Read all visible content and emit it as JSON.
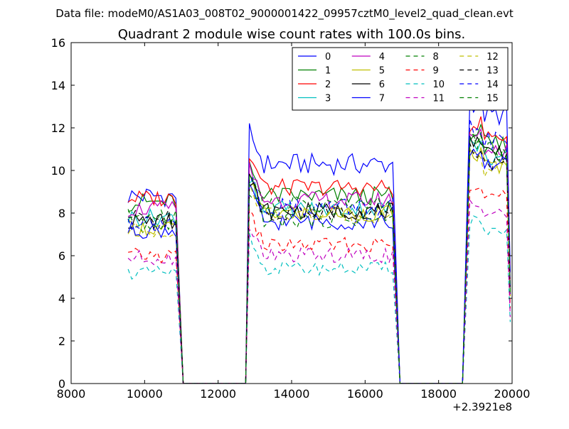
{
  "header": {
    "suptitle": "Data file: modeM0/AS1A03_008T02_9000001422_09957cztM0_level2_quad_clean.evt"
  },
  "chart_data": {
    "type": "line",
    "title": "Quadrant 2 module wise count rates with 100.0s bins.",
    "xlabel": "",
    "ylabel": "",
    "x_offset_label": "+2.3921e8",
    "xlim": [
      8000,
      20000
    ],
    "ylim": [
      0,
      16
    ],
    "xticks": [
      8000,
      10000,
      12000,
      14000,
      16000,
      18000,
      20000
    ],
    "yticks": [
      0,
      2,
      4,
      6,
      8,
      10,
      12,
      14,
      16
    ],
    "legend_position": "top-right",
    "legend_columns": 4,
    "segments": [
      {
        "x_start": 9550,
        "x_end": 10850,
        "step": 100,
        "drop_to": 11050
      },
      {
        "x_start": 12850,
        "x_end": 16750,
        "step": 100,
        "rise_from": 12750,
        "drop_to": 16950
      },
      {
        "x_start": 18850,
        "x_end": 19850,
        "step": 100,
        "rise_from": 18650,
        "drop_to": 19950
      }
    ],
    "series": [
      {
        "name": "0",
        "color": "#0000ff",
        "dash": "solid",
        "levels": [
          8.8,
          10.3,
          12.6
        ],
        "wiggle": 0.5
      },
      {
        "name": "1",
        "color": "#008000",
        "dash": "solid",
        "levels": [
          8.5,
          8.8,
          11.2
        ],
        "wiggle": 0.45
      },
      {
        "name": "2",
        "color": "#ff0000",
        "dash": "solid",
        "levels": [
          8.7,
          9.2,
          11.6
        ],
        "wiggle": 0.4
      },
      {
        "name": "3",
        "color": "#00bfbf",
        "dash": "solid",
        "levels": [
          7.8,
          8.2,
          10.6
        ],
        "wiggle": 0.4
      },
      {
        "name": "4",
        "color": "#bf00bf",
        "dash": "solid",
        "levels": [
          8.2,
          8.6,
          11.0
        ],
        "wiggle": 0.4
      },
      {
        "name": "5",
        "color": "#bfbf00",
        "dash": "solid",
        "levels": [
          7.3,
          8.0,
          10.2
        ],
        "wiggle": 0.4
      },
      {
        "name": "6",
        "color": "#000000",
        "dash": "solid",
        "levels": [
          7.6,
          8.1,
          10.9
        ],
        "wiggle": 0.4
      },
      {
        "name": "7",
        "color": "#0000ff",
        "dash": "solid",
        "levels": [
          7.2,
          7.6,
          10.3
        ],
        "wiggle": 0.4
      },
      {
        "name": "8",
        "color": "#008000",
        "dash": "dashed",
        "levels": [
          7.4,
          7.7,
          10.8
        ],
        "wiggle": 0.4
      },
      {
        "name": "9",
        "color": "#ff0000",
        "dash": "dashed",
        "levels": [
          6.0,
          6.5,
          8.8
        ],
        "wiggle": 0.35
      },
      {
        "name": "10",
        "color": "#00bfbf",
        "dash": "dashed",
        "levels": [
          5.2,
          5.4,
          7.0
        ],
        "wiggle": 0.3
      },
      {
        "name": "11",
        "color": "#bf00bf",
        "dash": "dashed",
        "levels": [
          5.9,
          6.0,
          8.0
        ],
        "wiggle": 0.35
      },
      {
        "name": "12",
        "color": "#bfbf00",
        "dash": "dashed",
        "levels": [
          7.2,
          7.9,
          10.0
        ],
        "wiggle": 0.4
      },
      {
        "name": "13",
        "color": "#000000",
        "dash": "dashed",
        "levels": [
          7.8,
          8.0,
          10.4
        ],
        "wiggle": 0.4
      },
      {
        "name": "14",
        "color": "#0000ff",
        "dash": "dashed",
        "levels": [
          7.6,
          8.3,
          11.4
        ],
        "wiggle": 0.45
      },
      {
        "name": "15",
        "color": "#008000",
        "dash": "dashed",
        "levels": [
          7.8,
          8.4,
          11.0
        ],
        "wiggle": 0.4
      }
    ]
  }
}
